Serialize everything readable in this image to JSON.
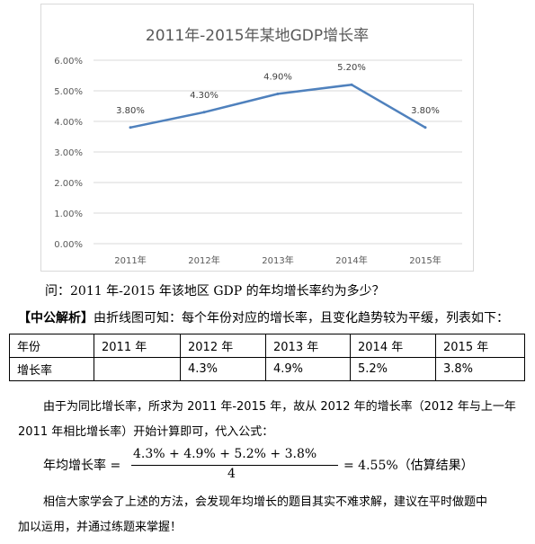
{
  "chart_data": {
    "type": "line",
    "title": "2011年-2015年某地GDP增长率",
    "categories": [
      "2011年",
      "2012年",
      "2013年",
      "2014年",
      "2015年"
    ],
    "values": [
      3.8,
      4.3,
      4.9,
      5.2,
      3.8
    ],
    "data_labels": [
      "3.80%",
      "4.30%",
      "4.90%",
      "5.20%",
      "3.80%"
    ],
    "y_ticks": [
      "0.00%",
      "1.00%",
      "2.00%",
      "3.00%",
      "4.00%",
      "5.00%",
      "6.00%"
    ],
    "ylim": [
      0,
      6
    ],
    "grid": true,
    "line_color": "#4f81bd"
  },
  "question": "问：2011 年-2015 年该地区 GDP 的年均增长率约为多少？",
  "analysis": {
    "tag": "【中公解析】",
    "text": "由折线图可知：每个年份对应的增长率，且变化趋势较为平缓，列表如下："
  },
  "table": {
    "header": [
      "年份",
      "2011 年",
      "2012 年",
      "2013 年",
      "2014 年",
      "2015 年"
    ],
    "row": [
      "增长率",
      "",
      "4.3%",
      "4.9%",
      "5.2%",
      "3.8%"
    ]
  },
  "explanation": {
    "line1": "由于为同比增长率，所求为 2011 年-2015 年，故从 2012 年的增长率（2012 年与上一年",
    "line2": "2011 年相比增长率）开始计算即可，代入公式："
  },
  "formula": {
    "lhs": "年均增长率 =",
    "numerator": "4.3% + 4.9% + 5.2% + 3.8%",
    "denominator": "4",
    "result": "= 4.55%",
    "note": "（估算结果）"
  },
  "closing": {
    "line1": "相信大家学会了上述的方法，会发现年均增长的题目其实不难求解，建议在平时做题中",
    "line2": "加以运用，并通过练题来掌握！"
  }
}
